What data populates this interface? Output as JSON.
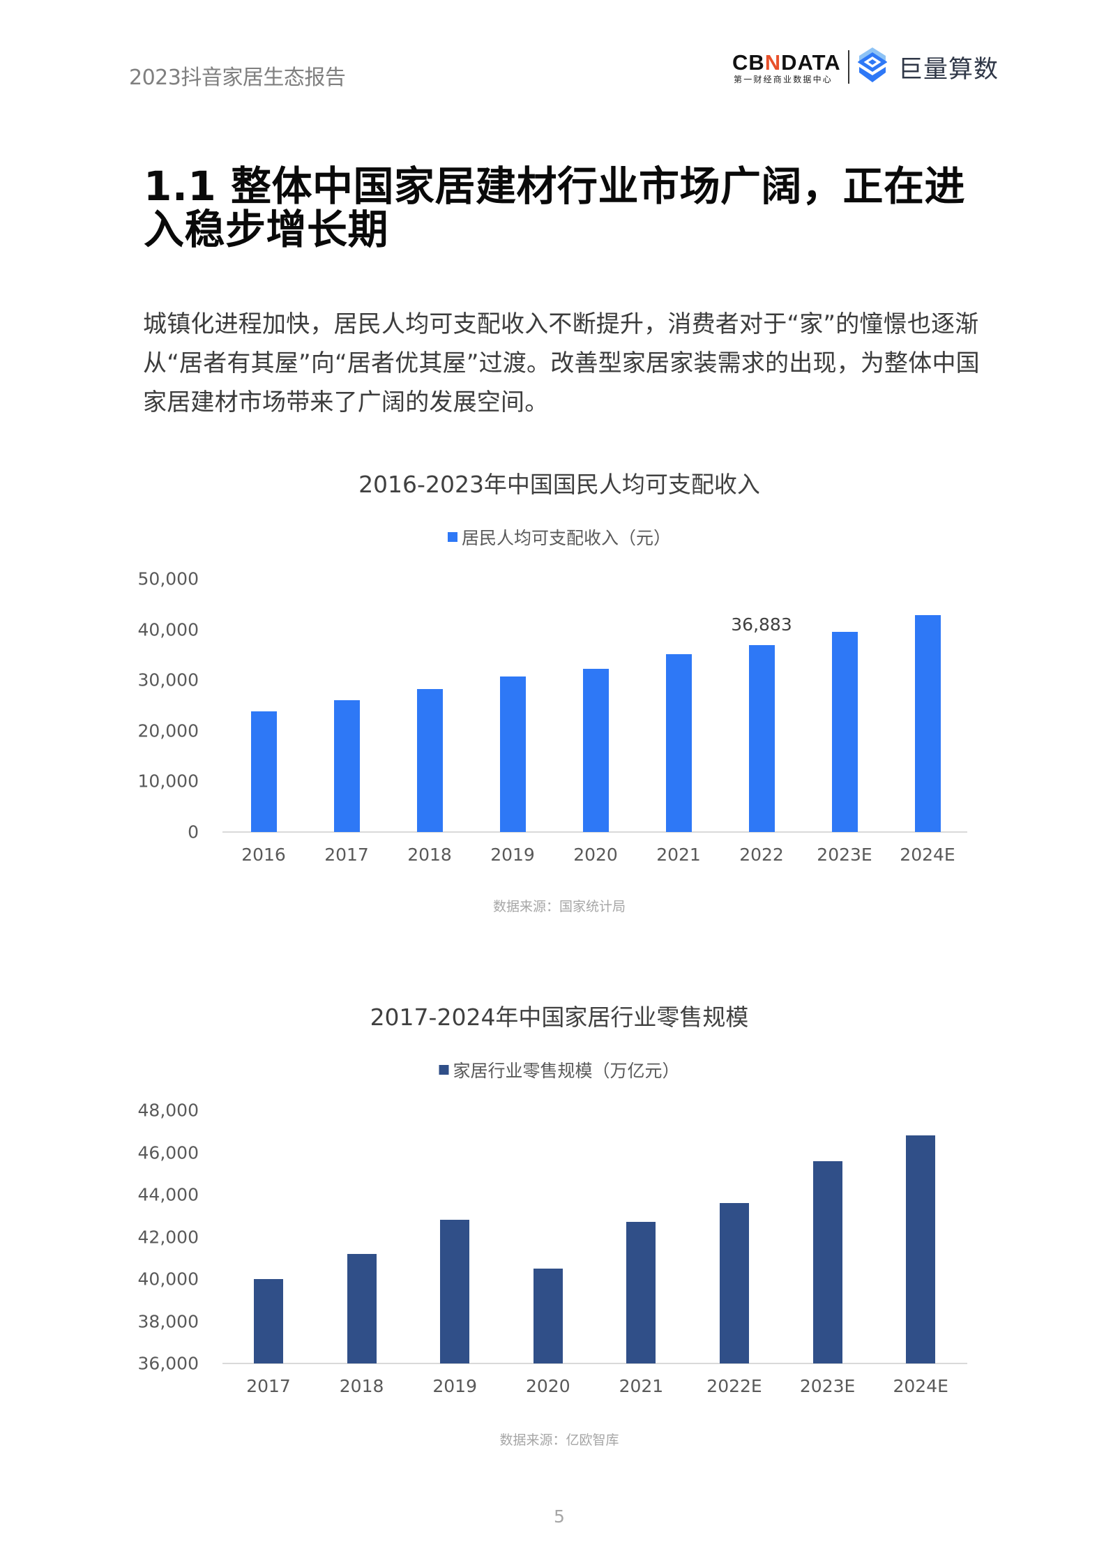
{
  "header": {
    "report_title": "2023抖音家居生态报告",
    "logo_cbndata": {
      "prefix": "CB",
      "n": "N",
      "suffix": "DATA",
      "subtitle": "第一财经商业数据中心",
      "accent_color": "#e8512b"
    },
    "logo_juliang": {
      "text": "巨量算数",
      "icon": "juliang-logo-icon"
    }
  },
  "section": {
    "title": "1.1  整体中国家居建材行业市场广阔，正在进入稳步增长期",
    "paragraph": "城镇化进程加快，居民人均可支配收入不断提升，消费者对于“家”的憧憬也逐渐从“居者有其屋”向“居者优其屋”过渡。改善型家居家装需求的出现，为整体中国家居建材市场带来了广阔的发展空间。"
  },
  "charts": {
    "income": {
      "title": "2016-2023年中国国民人均可支配收入",
      "legend": "居民人均可支配收入（元）",
      "source": "数据来源：国家统计局",
      "yticks": [
        "50,000",
        "40,000",
        "30,000",
        "20,000",
        "10,000",
        "0"
      ],
      "categories": [
        "2016",
        "2017",
        "2018",
        "2019",
        "2020",
        "2021",
        "2022",
        "2023E",
        "2024E"
      ],
      "data_label": "36,883"
    },
    "retail": {
      "title": "2017-2024年中国家居行业零售规模",
      "legend": "家居行业零售规模（万亿元）",
      "source": "数据来源：亿欧智库",
      "yticks": [
        "48,000",
        "46,000",
        "44,000",
        "42,000",
        "40,000",
        "38,000",
        "36,000"
      ],
      "categories": [
        "2017",
        "2018",
        "2019",
        "2020",
        "2021",
        "2022E",
        "2023E",
        "2024E"
      ]
    }
  },
  "footer": {
    "page_number": "5"
  },
  "colors": {
    "income_bar": "#2e78f6",
    "retail_bar": "#304f88",
    "axis": "#d9d9d9"
  },
  "chart_data": [
    {
      "type": "bar",
      "title": "2016-2023年中国国民人均可支配收入",
      "xlabel": "",
      "ylabel": "",
      "categories": [
        "2016",
        "2017",
        "2018",
        "2019",
        "2020",
        "2021",
        "2022",
        "2023E",
        "2024E"
      ],
      "series": [
        {
          "name": "居民人均可支配收入（元）",
          "color": "#2e78f6",
          "values": [
            23821,
            25974,
            28228,
            30733,
            32189,
            35128,
            36883,
            39600,
            42800
          ]
        }
      ],
      "annotations": [
        {
          "category": "2022",
          "text": "36,883"
        }
      ],
      "ylim": [
        0,
        50000
      ],
      "yticks": [
        0,
        10000,
        20000,
        30000,
        40000,
        50000
      ],
      "grid": false,
      "legend_position": "top",
      "source": "数据来源：国家统计局"
    },
    {
      "type": "bar",
      "title": "2017-2024年中国家居行业零售规模",
      "xlabel": "",
      "ylabel": "",
      "categories": [
        "2017",
        "2018",
        "2019",
        "2020",
        "2021",
        "2022E",
        "2023E",
        "2024E"
      ],
      "series": [
        {
          "name": "家居行业零售规模（万亿元）",
          "color": "#304f88",
          "values": [
            40000,
            41200,
            42800,
            40500,
            42700,
            43600,
            45600,
            46800
          ]
        }
      ],
      "ylim": [
        36000,
        48000
      ],
      "yticks": [
        36000,
        38000,
        40000,
        42000,
        44000,
        46000,
        48000
      ],
      "grid": false,
      "legend_position": "top",
      "source": "数据来源：亿欧智库"
    }
  ]
}
